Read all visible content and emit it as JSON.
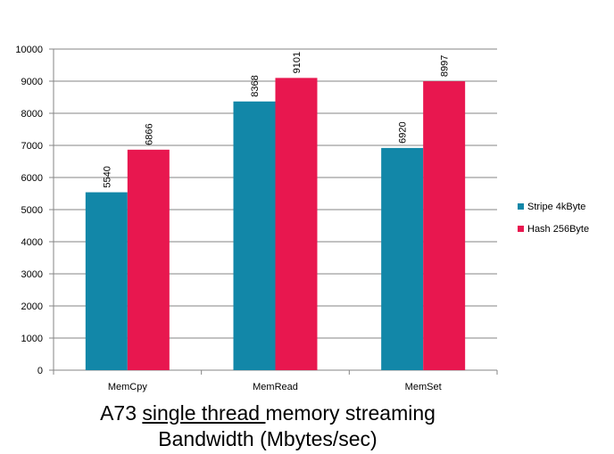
{
  "chart_data": {
    "type": "bar",
    "categories": [
      "MemCpy",
      "MemRead",
      "MemSet"
    ],
    "series": [
      {
        "name": "Stripe 4kByte",
        "values": [
          5540,
          8368,
          6920
        ],
        "color": "#1287A8"
      },
      {
        "name": "Hash 256Byte",
        "values": [
          6866,
          9101,
          8997
        ],
        "color": "#E8174F"
      }
    ],
    "data_labels": [
      [
        "5540",
        "8368",
        "6920"
      ],
      [
        "6866",
        "9101",
        "8997"
      ]
    ],
    "ylim": [
      0,
      10000
    ],
    "yticks": [
      "0",
      "1000",
      "2000",
      "3000",
      "4000",
      "5000",
      "6000",
      "7000",
      "8000",
      "9000",
      "10000"
    ],
    "grid": true,
    "legend_position": "right"
  },
  "caption": {
    "part1": "A73 ",
    "part2_underlined": "single thread ",
    "part3": "memory streaming",
    "line2": "Bandwidth (Mbytes/sec)"
  }
}
